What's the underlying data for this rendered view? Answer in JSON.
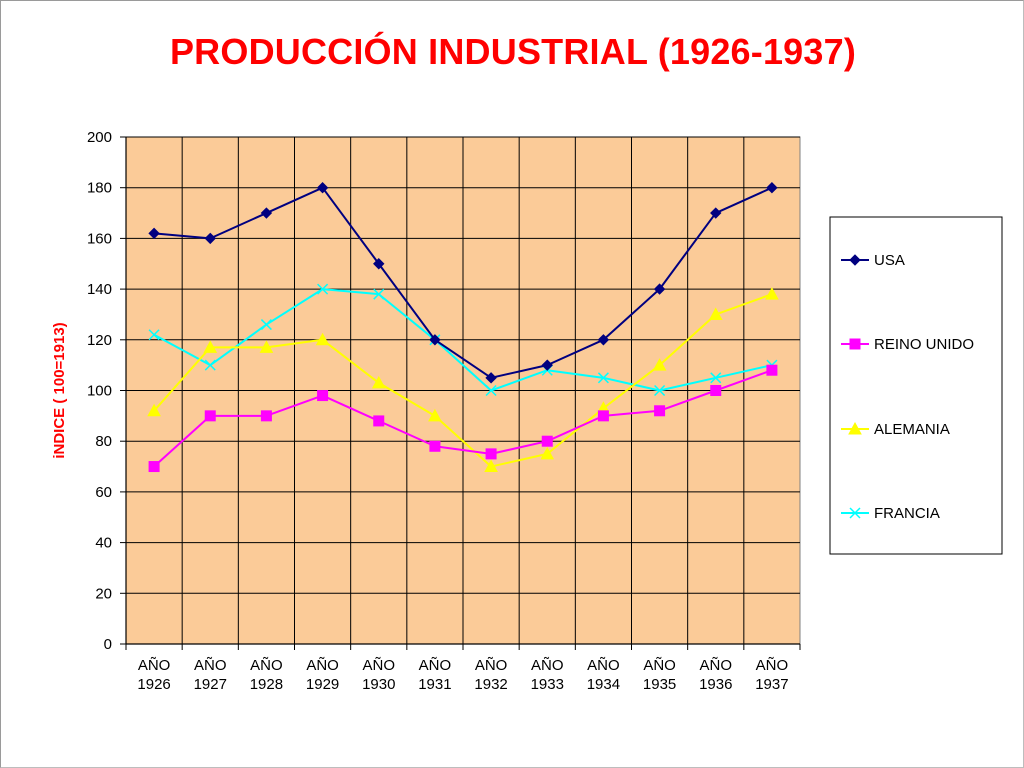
{
  "slide": {
    "title": "PRODUCCIÓN INDUSTRIAL (1926-1937)"
  },
  "colors": {
    "title": "#ff0000",
    "plot_background": "#fbcb98",
    "gridline": "#000000",
    "ylabel": "#ff0000"
  },
  "chart_data": {
    "type": "line",
    "title": "PRODUCCIÓN INDUSTRIAL (1926-1937)",
    "xlabel": "",
    "ylabel": "iNDICE ( 100=1913)",
    "ylim": [
      0,
      200
    ],
    "yticks": [
      "0",
      "20",
      "40",
      "60",
      "80",
      "100",
      "120",
      "140",
      "160",
      "180",
      "200"
    ],
    "categories": [
      [
        "AÑO",
        "1926"
      ],
      [
        "AÑO",
        "1927"
      ],
      [
        "AÑO",
        "1928"
      ],
      [
        "AÑO",
        "1929"
      ],
      [
        "AÑO",
        "1930"
      ],
      [
        "AÑO",
        "1931"
      ],
      [
        "AÑO",
        "1932"
      ],
      [
        "AÑO",
        "1933"
      ],
      [
        "AÑO",
        "1934"
      ],
      [
        "AÑO",
        "1935"
      ],
      [
        "AÑO",
        "1936"
      ],
      [
        "AÑO",
        "1937"
      ]
    ],
    "grid": true,
    "legend_position": "right",
    "series": [
      {
        "name": "USA",
        "color": "#000080",
        "marker": "diamond",
        "values": [
          162,
          160,
          170,
          180,
          150,
          120,
          105,
          110,
          120,
          140,
          170,
          180
        ]
      },
      {
        "name": "REINO UNIDO",
        "color": "#ff00ff",
        "marker": "square",
        "values": [
          70,
          90,
          90,
          98,
          88,
          78,
          75,
          80,
          90,
          92,
          100,
          108
        ]
      },
      {
        "name": "ALEMANIA",
        "color": "#ffff00",
        "marker": "triangle",
        "values": [
          92,
          117,
          117,
          120,
          103,
          90,
          70,
          75,
          93,
          110,
          130,
          138
        ]
      },
      {
        "name": "FRANCIA",
        "color": "#00ffff",
        "marker": "x",
        "values": [
          122,
          110,
          126,
          140,
          138,
          120,
          100,
          108,
          105,
          100,
          105,
          110
        ]
      }
    ]
  }
}
